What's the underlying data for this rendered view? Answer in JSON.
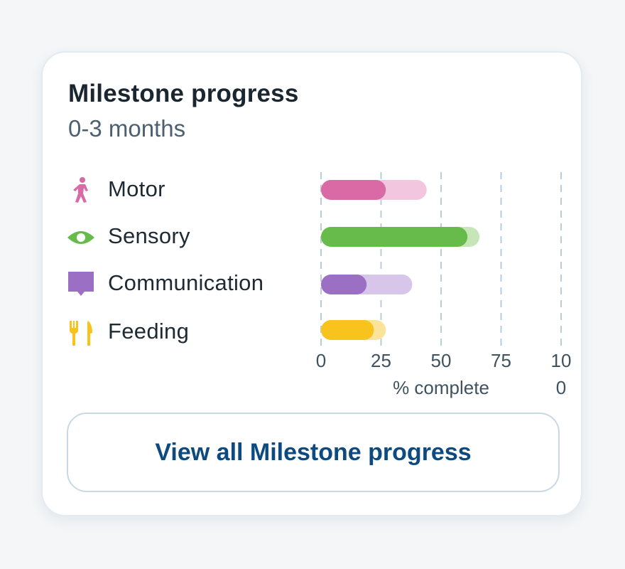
{
  "card": {
    "title": "Milestone progress",
    "subtitle": "0-3 months",
    "button_label": "View all Milestone progress"
  },
  "categories": [
    {
      "label": "Motor",
      "icon": "walking-person-icon",
      "color": "#d96aa6",
      "light": "#f1c6de"
    },
    {
      "label": "Sensory",
      "icon": "eye-icon",
      "color": "#66bb4a",
      "light": "#c6e6b7"
    },
    {
      "label": "Communication",
      "icon": "speech-bubble-icon",
      "color": "#9b6fc4",
      "light": "#d8c5ea"
    },
    {
      "label": "Feeding",
      "icon": "fork-knife-icon",
      "color": "#f7c31c",
      "light": "#fbe49a"
    }
  ],
  "chart_data": {
    "type": "bar",
    "orientation": "horizontal",
    "stacked": "overlay",
    "categories": [
      "Motor",
      "Sensory",
      "Communication",
      "Feeding"
    ],
    "series": [
      {
        "values": [
          27,
          61,
          19,
          22
        ]
      },
      {
        "values": [
          44,
          66,
          38,
          27
        ]
      }
    ],
    "xlim": [
      0,
      100
    ],
    "x_ticks": [
      0,
      25,
      50,
      75,
      100
    ],
    "x_tick_labels": [
      "0",
      "25",
      "50",
      "75",
      "10\n0"
    ],
    "xlabel": "% complete",
    "grid": "vertical-dashed"
  }
}
